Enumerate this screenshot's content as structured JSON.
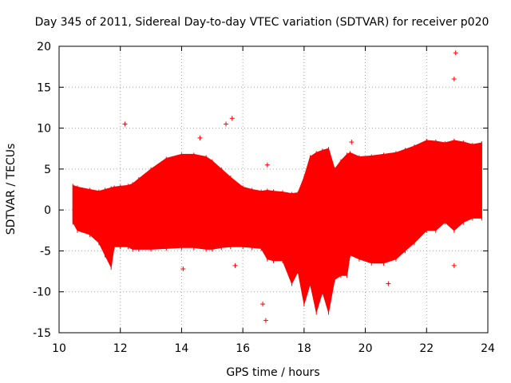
{
  "chart_data": {
    "type": "scatter",
    "title": "Day 345 of 2011, Sidereal Day-to-day VTEC variation (SDTVAR) for receiver p020",
    "xlabel": "GPS time / hours",
    "ylabel": "SDTVAR / TECUs",
    "xlim": [
      10,
      24
    ],
    "ylim": [
      -15,
      20
    ],
    "xticks": [
      "10",
      "12",
      "14",
      "16",
      "18",
      "20",
      "22",
      "24"
    ],
    "yticks": [
      "-15",
      "-10",
      "-5",
      "0",
      "5",
      "10",
      "15",
      "20"
    ],
    "grid": true,
    "color": "#ff0000",
    "marker": "+",
    "series": [
      {
        "name": "SDTVAR",
        "envelope": {
          "x": [
            10.45,
            10.6,
            11.0,
            11.3,
            11.5,
            11.7,
            11.8,
            12.0,
            12.25,
            12.4,
            12.6,
            13.0,
            13.5,
            14.0,
            14.4,
            14.8,
            15.0,
            15.3,
            15.6,
            16.0,
            16.3,
            16.6,
            16.8,
            17.0,
            17.3,
            17.6,
            17.8,
            18.0,
            18.2,
            18.4,
            18.6,
            18.8,
            19.0,
            19.2,
            19.4,
            19.5,
            19.8,
            20.2,
            20.6,
            21.0,
            21.3,
            21.6,
            22.0,
            22.3,
            22.6,
            22.9,
            23.2,
            23.5,
            23.8
          ],
          "upper": [
            3.0,
            2.8,
            2.5,
            2.3,
            2.5,
            2.7,
            2.8,
            2.9,
            3.0,
            3.2,
            3.8,
            5.0,
            6.3,
            6.8,
            6.8,
            6.5,
            6.0,
            5.0,
            4.0,
            2.8,
            2.5,
            2.3,
            2.4,
            2.3,
            2.2,
            2.0,
            2.1,
            4.0,
            6.5,
            7.0,
            7.3,
            7.5,
            5.0,
            6.0,
            6.8,
            7.0,
            6.5,
            6.6,
            6.8,
            7.0,
            7.4,
            7.8,
            8.5,
            8.4,
            8.2,
            8.5,
            8.3,
            8.0,
            8.2
          ],
          "lower": [
            -1.5,
            -2.5,
            -3.0,
            -4.0,
            -5.5,
            -7.0,
            -4.5,
            -4.5,
            -4.5,
            -4.8,
            -4.8,
            -4.8,
            -4.7,
            -4.6,
            -4.6,
            -4.8,
            -4.8,
            -4.6,
            -4.5,
            -4.5,
            -4.6,
            -4.7,
            -6.0,
            -6.2,
            -6.2,
            -9.0,
            -7.5,
            -11.5,
            -9.0,
            -12.5,
            -10.0,
            -12.5,
            -8.5,
            -8.0,
            -8.0,
            -5.5,
            -6.0,
            -6.5,
            -6.5,
            -6.0,
            -5.0,
            -4.0,
            -2.5,
            -2.5,
            -1.5,
            -2.5,
            -1.5,
            -1.0,
            -1.0
          ]
        },
        "outliers": {
          "x": [
            12.15,
            14.6,
            15.45,
            15.65,
            16.8,
            16.65,
            16.75,
            19.55,
            20.75,
            22.95,
            22.9,
            22.9,
            14.05,
            15.75
          ],
          "y": [
            10.5,
            8.8,
            10.5,
            11.2,
            5.5,
            -11.5,
            -13.5,
            8.3,
            -9.0,
            19.2,
            16.0,
            -6.8,
            -7.2,
            -6.8
          ]
        }
      }
    ]
  }
}
